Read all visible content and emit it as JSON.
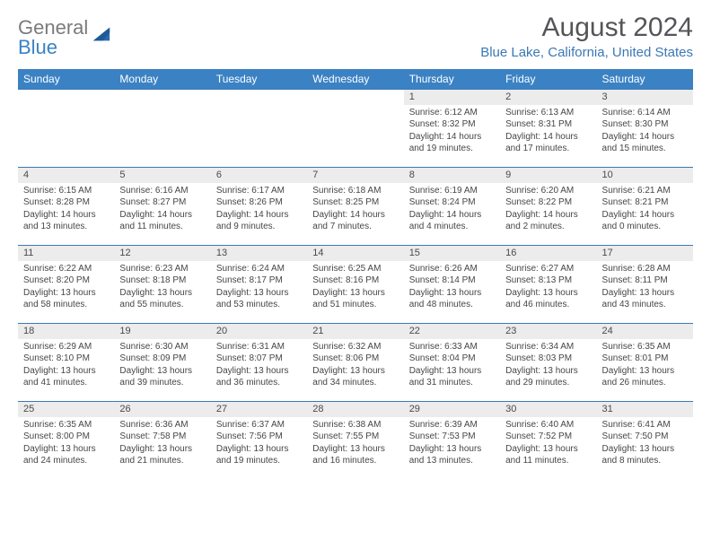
{
  "logo": {
    "text_general": "General",
    "text_blue": "Blue",
    "triangle_color": "#2a6bb0"
  },
  "title": "August 2024",
  "location": "Blue Lake, California, United States",
  "colors": {
    "header_bg": "#3b82c4",
    "header_text": "#ffffff",
    "daynum_bg": "#ececec",
    "row_border": "#3b78b5",
    "title_color": "#555558",
    "location_color": "#3b78b5",
    "body_text": "#464646"
  },
  "day_headers": [
    "Sunday",
    "Monday",
    "Tuesday",
    "Wednesday",
    "Thursday",
    "Friday",
    "Saturday"
  ],
  "weeks": [
    [
      null,
      null,
      null,
      null,
      {
        "n": "1",
        "sr": "6:12 AM",
        "ss": "8:32 PM",
        "dl": "14 hours and 19 minutes."
      },
      {
        "n": "2",
        "sr": "6:13 AM",
        "ss": "8:31 PM",
        "dl": "14 hours and 17 minutes."
      },
      {
        "n": "3",
        "sr": "6:14 AM",
        "ss": "8:30 PM",
        "dl": "14 hours and 15 minutes."
      }
    ],
    [
      {
        "n": "4",
        "sr": "6:15 AM",
        "ss": "8:28 PM",
        "dl": "14 hours and 13 minutes."
      },
      {
        "n": "5",
        "sr": "6:16 AM",
        "ss": "8:27 PM",
        "dl": "14 hours and 11 minutes."
      },
      {
        "n": "6",
        "sr": "6:17 AM",
        "ss": "8:26 PM",
        "dl": "14 hours and 9 minutes."
      },
      {
        "n": "7",
        "sr": "6:18 AM",
        "ss": "8:25 PM",
        "dl": "14 hours and 7 minutes."
      },
      {
        "n": "8",
        "sr": "6:19 AM",
        "ss": "8:24 PM",
        "dl": "14 hours and 4 minutes."
      },
      {
        "n": "9",
        "sr": "6:20 AM",
        "ss": "8:22 PM",
        "dl": "14 hours and 2 minutes."
      },
      {
        "n": "10",
        "sr": "6:21 AM",
        "ss": "8:21 PM",
        "dl": "14 hours and 0 minutes."
      }
    ],
    [
      {
        "n": "11",
        "sr": "6:22 AM",
        "ss": "8:20 PM",
        "dl": "13 hours and 58 minutes."
      },
      {
        "n": "12",
        "sr": "6:23 AM",
        "ss": "8:18 PM",
        "dl": "13 hours and 55 minutes."
      },
      {
        "n": "13",
        "sr": "6:24 AM",
        "ss": "8:17 PM",
        "dl": "13 hours and 53 minutes."
      },
      {
        "n": "14",
        "sr": "6:25 AM",
        "ss": "8:16 PM",
        "dl": "13 hours and 51 minutes."
      },
      {
        "n": "15",
        "sr": "6:26 AM",
        "ss": "8:14 PM",
        "dl": "13 hours and 48 minutes."
      },
      {
        "n": "16",
        "sr": "6:27 AM",
        "ss": "8:13 PM",
        "dl": "13 hours and 46 minutes."
      },
      {
        "n": "17",
        "sr": "6:28 AM",
        "ss": "8:11 PM",
        "dl": "13 hours and 43 minutes."
      }
    ],
    [
      {
        "n": "18",
        "sr": "6:29 AM",
        "ss": "8:10 PM",
        "dl": "13 hours and 41 minutes."
      },
      {
        "n": "19",
        "sr": "6:30 AM",
        "ss": "8:09 PM",
        "dl": "13 hours and 39 minutes."
      },
      {
        "n": "20",
        "sr": "6:31 AM",
        "ss": "8:07 PM",
        "dl": "13 hours and 36 minutes."
      },
      {
        "n": "21",
        "sr": "6:32 AM",
        "ss": "8:06 PM",
        "dl": "13 hours and 34 minutes."
      },
      {
        "n": "22",
        "sr": "6:33 AM",
        "ss": "8:04 PM",
        "dl": "13 hours and 31 minutes."
      },
      {
        "n": "23",
        "sr": "6:34 AM",
        "ss": "8:03 PM",
        "dl": "13 hours and 29 minutes."
      },
      {
        "n": "24",
        "sr": "6:35 AM",
        "ss": "8:01 PM",
        "dl": "13 hours and 26 minutes."
      }
    ],
    [
      {
        "n": "25",
        "sr": "6:35 AM",
        "ss": "8:00 PM",
        "dl": "13 hours and 24 minutes."
      },
      {
        "n": "26",
        "sr": "6:36 AM",
        "ss": "7:58 PM",
        "dl": "13 hours and 21 minutes."
      },
      {
        "n": "27",
        "sr": "6:37 AM",
        "ss": "7:56 PM",
        "dl": "13 hours and 19 minutes."
      },
      {
        "n": "28",
        "sr": "6:38 AM",
        "ss": "7:55 PM",
        "dl": "13 hours and 16 minutes."
      },
      {
        "n": "29",
        "sr": "6:39 AM",
        "ss": "7:53 PM",
        "dl": "13 hours and 13 minutes."
      },
      {
        "n": "30",
        "sr": "6:40 AM",
        "ss": "7:52 PM",
        "dl": "13 hours and 11 minutes."
      },
      {
        "n": "31",
        "sr": "6:41 AM",
        "ss": "7:50 PM",
        "dl": "13 hours and 8 minutes."
      }
    ]
  ],
  "labels": {
    "sunrise": "Sunrise:",
    "sunset": "Sunset:",
    "daylight": "Daylight:"
  }
}
